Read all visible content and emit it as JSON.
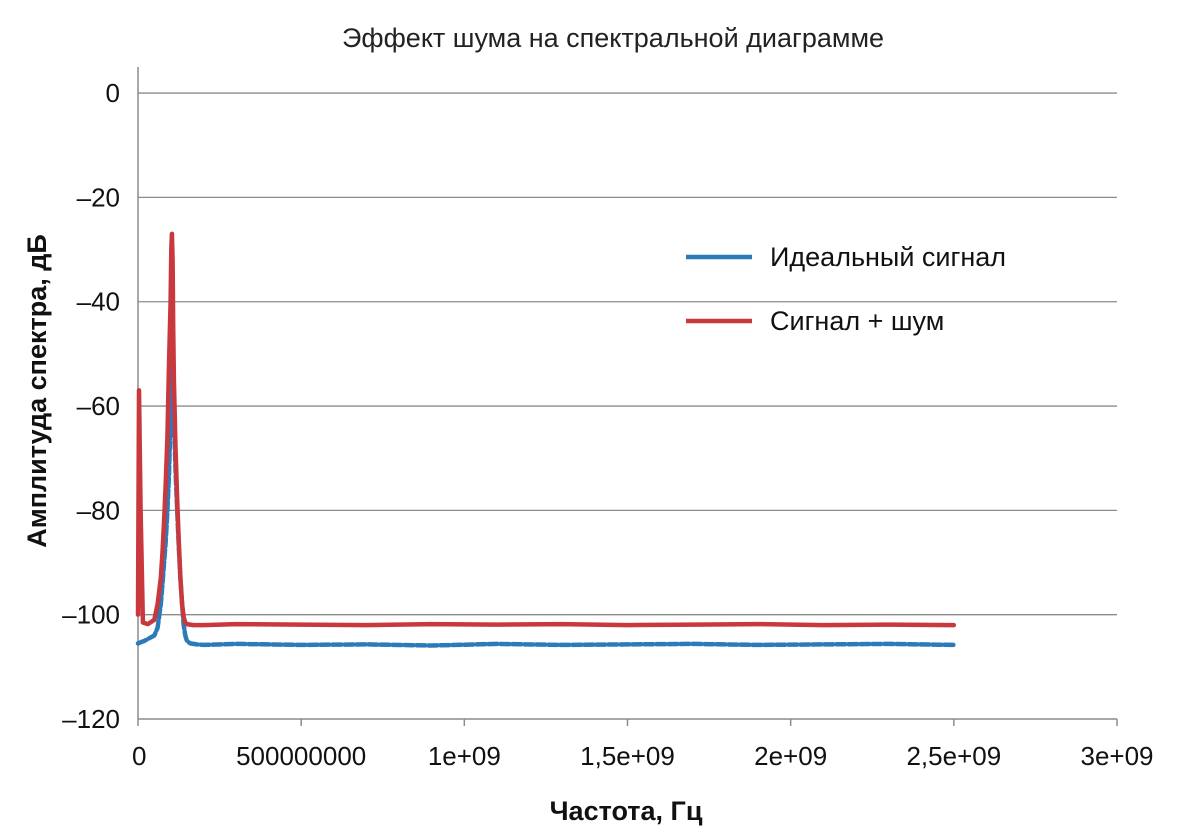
{
  "chart_data": {
    "type": "line",
    "title": "Эффект шума на спектральной диаграмме",
    "xlabel": "Частота, Гц",
    "ylabel": "Амплитуда спектра, дБ",
    "xlim": [
      0,
      3000000000
    ],
    "ylim": [
      -120,
      5
    ],
    "x_ticks": [
      0,
      500000000,
      1000000000,
      1500000000,
      2000000000,
      2500000000,
      3000000000
    ],
    "x_tick_labels": [
      "0",
      "500000000",
      "1e+09",
      "1,5e+09",
      "2e+09",
      "2,5e+09",
      "3e+09"
    ],
    "y_ticks": [
      0,
      -20,
      -40,
      -60,
      -80,
      -100,
      -120
    ],
    "y_tick_labels": [
      "0",
      "–20",
      "–40",
      "–60",
      "–80",
      "–100",
      "–120"
    ],
    "grid": "horizontal",
    "legend_position": "upper-right",
    "series": [
      {
        "name": "Идеальный сигнал",
        "color": "#2b7bba",
        "style": "dashed",
        "x": [
          0,
          20000000,
          50000000,
          60000000,
          70000000,
          75000000,
          80000000,
          85000000,
          90000000,
          95000000,
          100000000,
          102000000,
          104000000,
          106000000,
          108000000,
          110000000,
          115000000,
          120000000,
          125000000,
          130000000,
          135000000,
          140000000,
          145000000,
          150000000,
          160000000,
          180000000,
          200000000,
          300000000,
          500000000,
          700000000,
          900000000,
          1100000000,
          1300000000,
          1500000000,
          1700000000,
          1900000000,
          2100000000,
          2300000000,
          2500000000
        ],
        "y": [
          -105.5,
          -105,
          -104,
          -102.5,
          -98,
          -94,
          -90,
          -86,
          -80,
          -73,
          -62,
          -58,
          -52,
          -48,
          -55,
          -62,
          -72,
          -80,
          -87,
          -93,
          -98,
          -102,
          -104,
          -105,
          -105.5,
          -105.7,
          -105.8,
          -105.6,
          -105.8,
          -105.7,
          -105.9,
          -105.6,
          -105.8,
          -105.7,
          -105.6,
          -105.8,
          -105.7,
          -105.6,
          -105.8
        ]
      },
      {
        "name": "Сигнал + шум",
        "color": "#c8383d",
        "style": "solid",
        "x": [
          0,
          3000000,
          8000000,
          15000000,
          30000000,
          50000000,
          60000000,
          70000000,
          75000000,
          80000000,
          85000000,
          90000000,
          95000000,
          100000000,
          102000000,
          104000000,
          106000000,
          108000000,
          110000000,
          115000000,
          120000000,
          125000000,
          130000000,
          135000000,
          140000000,
          145000000,
          150000000,
          170000000,
          200000000,
          300000000,
          500000000,
          700000000,
          900000000,
          1100000000,
          1300000000,
          1500000000,
          1700000000,
          1900000000,
          2100000000,
          2300000000,
          2500000000
        ],
        "y": [
          -100,
          -57,
          -80,
          -101.5,
          -101.8,
          -101,
          -98,
          -93,
          -88,
          -82,
          -75,
          -66,
          -52,
          -40,
          -30,
          -27,
          -32,
          -45,
          -55,
          -68,
          -78,
          -86,
          -93,
          -98,
          -100.5,
          -101.5,
          -101.8,
          -102,
          -102,
          -101.8,
          -101.9,
          -102,
          -101.8,
          -101.9,
          -101.8,
          -102,
          -101.9,
          -101.8,
          -102,
          -101.9,
          -102
        ]
      }
    ]
  }
}
